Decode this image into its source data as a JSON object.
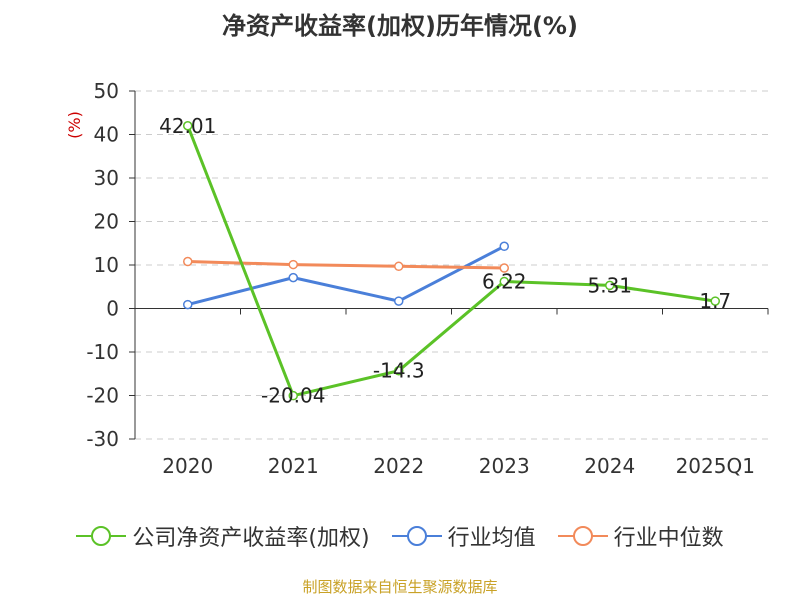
{
  "chart_data": {
    "type": "line",
    "title": "净资产收益率(加权)历年情况(%)",
    "ylabel": "(%)",
    "ylim": [
      -30,
      50
    ],
    "yticks": [
      50,
      40,
      30,
      20,
      10,
      0,
      -10,
      -20,
      -30
    ],
    "categories": [
      "2020",
      "2021",
      "2022",
      "2023",
      "2024",
      "2025Q1"
    ],
    "grid": true,
    "legend_position": "bottom",
    "series": [
      {
        "name": "公司净资产收益率(加权)",
        "color": "#5bc227",
        "values": [
          42.01,
          -20.04,
          -14.3,
          6.22,
          5.31,
          1.7
        ],
        "labels": [
          "42.01",
          "-20.04",
          "-14.3",
          "6.22",
          "5.31",
          "1.7"
        ]
      },
      {
        "name": "行业均值",
        "color": "#4a7fd9",
        "values": [
          0.9,
          7.1,
          1.7,
          14.3,
          null,
          null
        ]
      },
      {
        "name": "行业中位数",
        "color": "#f28a5a",
        "values": [
          10.8,
          10.1,
          9.7,
          9.3,
          null,
          null
        ]
      }
    ]
  },
  "source": "制图数据来自恒生聚源数据库"
}
